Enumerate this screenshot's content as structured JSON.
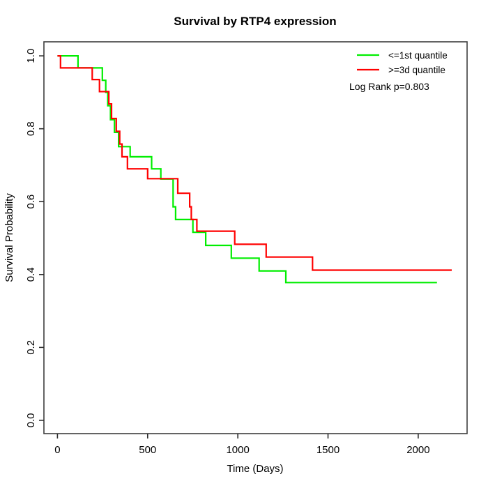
{
  "chart_data": {
    "type": "line",
    "subtype": "kaplan_meier_step",
    "title": "Survival by RTP4 expression",
    "xlabel": "Time (Days)",
    "ylabel": "Survival Probability",
    "xlim": [
      -75,
      2271
    ],
    "ylim": [
      -0.0365,
      1.0385
    ],
    "xticks": [
      0,
      500,
      1000,
      1500,
      2000
    ],
    "yticks": [
      0.0,
      0.2,
      0.4,
      0.6,
      0.8,
      1.0
    ],
    "grid": false,
    "legend_position": "top-right",
    "annotation": "Log Rank p=0.803",
    "axis_color": "#2e2e2e",
    "series": [
      {
        "name": "<=1st quantile",
        "color": "#00ee00",
        "points": [
          [
            0,
            1.0
          ],
          [
            114,
            0.967
          ],
          [
            249,
            0.933
          ],
          [
            268,
            0.9
          ],
          [
            279,
            0.863
          ],
          [
            294,
            0.825
          ],
          [
            316,
            0.79
          ],
          [
            339,
            0.751
          ],
          [
            403,
            0.723
          ],
          [
            522,
            0.69
          ],
          [
            573,
            0.662
          ],
          [
            641,
            0.586
          ],
          [
            655,
            0.551
          ],
          [
            751,
            0.516
          ],
          [
            822,
            0.48
          ],
          [
            964,
            0.445
          ],
          [
            1118,
            0.41
          ],
          [
            1266,
            0.378
          ],
          [
            2104,
            0.378
          ]
        ]
      },
      {
        "name": ">=3d quantile",
        "color": "#ff0000",
        "points": [
          [
            0,
            1.0
          ],
          [
            17,
            0.967
          ],
          [
            193,
            0.935
          ],
          [
            233,
            0.902
          ],
          [
            285,
            0.868
          ],
          [
            300,
            0.828
          ],
          [
            326,
            0.793
          ],
          [
            345,
            0.758
          ],
          [
            358,
            0.723
          ],
          [
            388,
            0.69
          ],
          [
            500,
            0.663
          ],
          [
            667,
            0.623
          ],
          [
            733,
            0.586
          ],
          [
            742,
            0.551
          ],
          [
            773,
            0.519
          ],
          [
            983,
            0.483
          ],
          [
            1157,
            0.448
          ],
          [
            1414,
            0.412
          ],
          [
            2186,
            0.412
          ]
        ]
      }
    ]
  }
}
